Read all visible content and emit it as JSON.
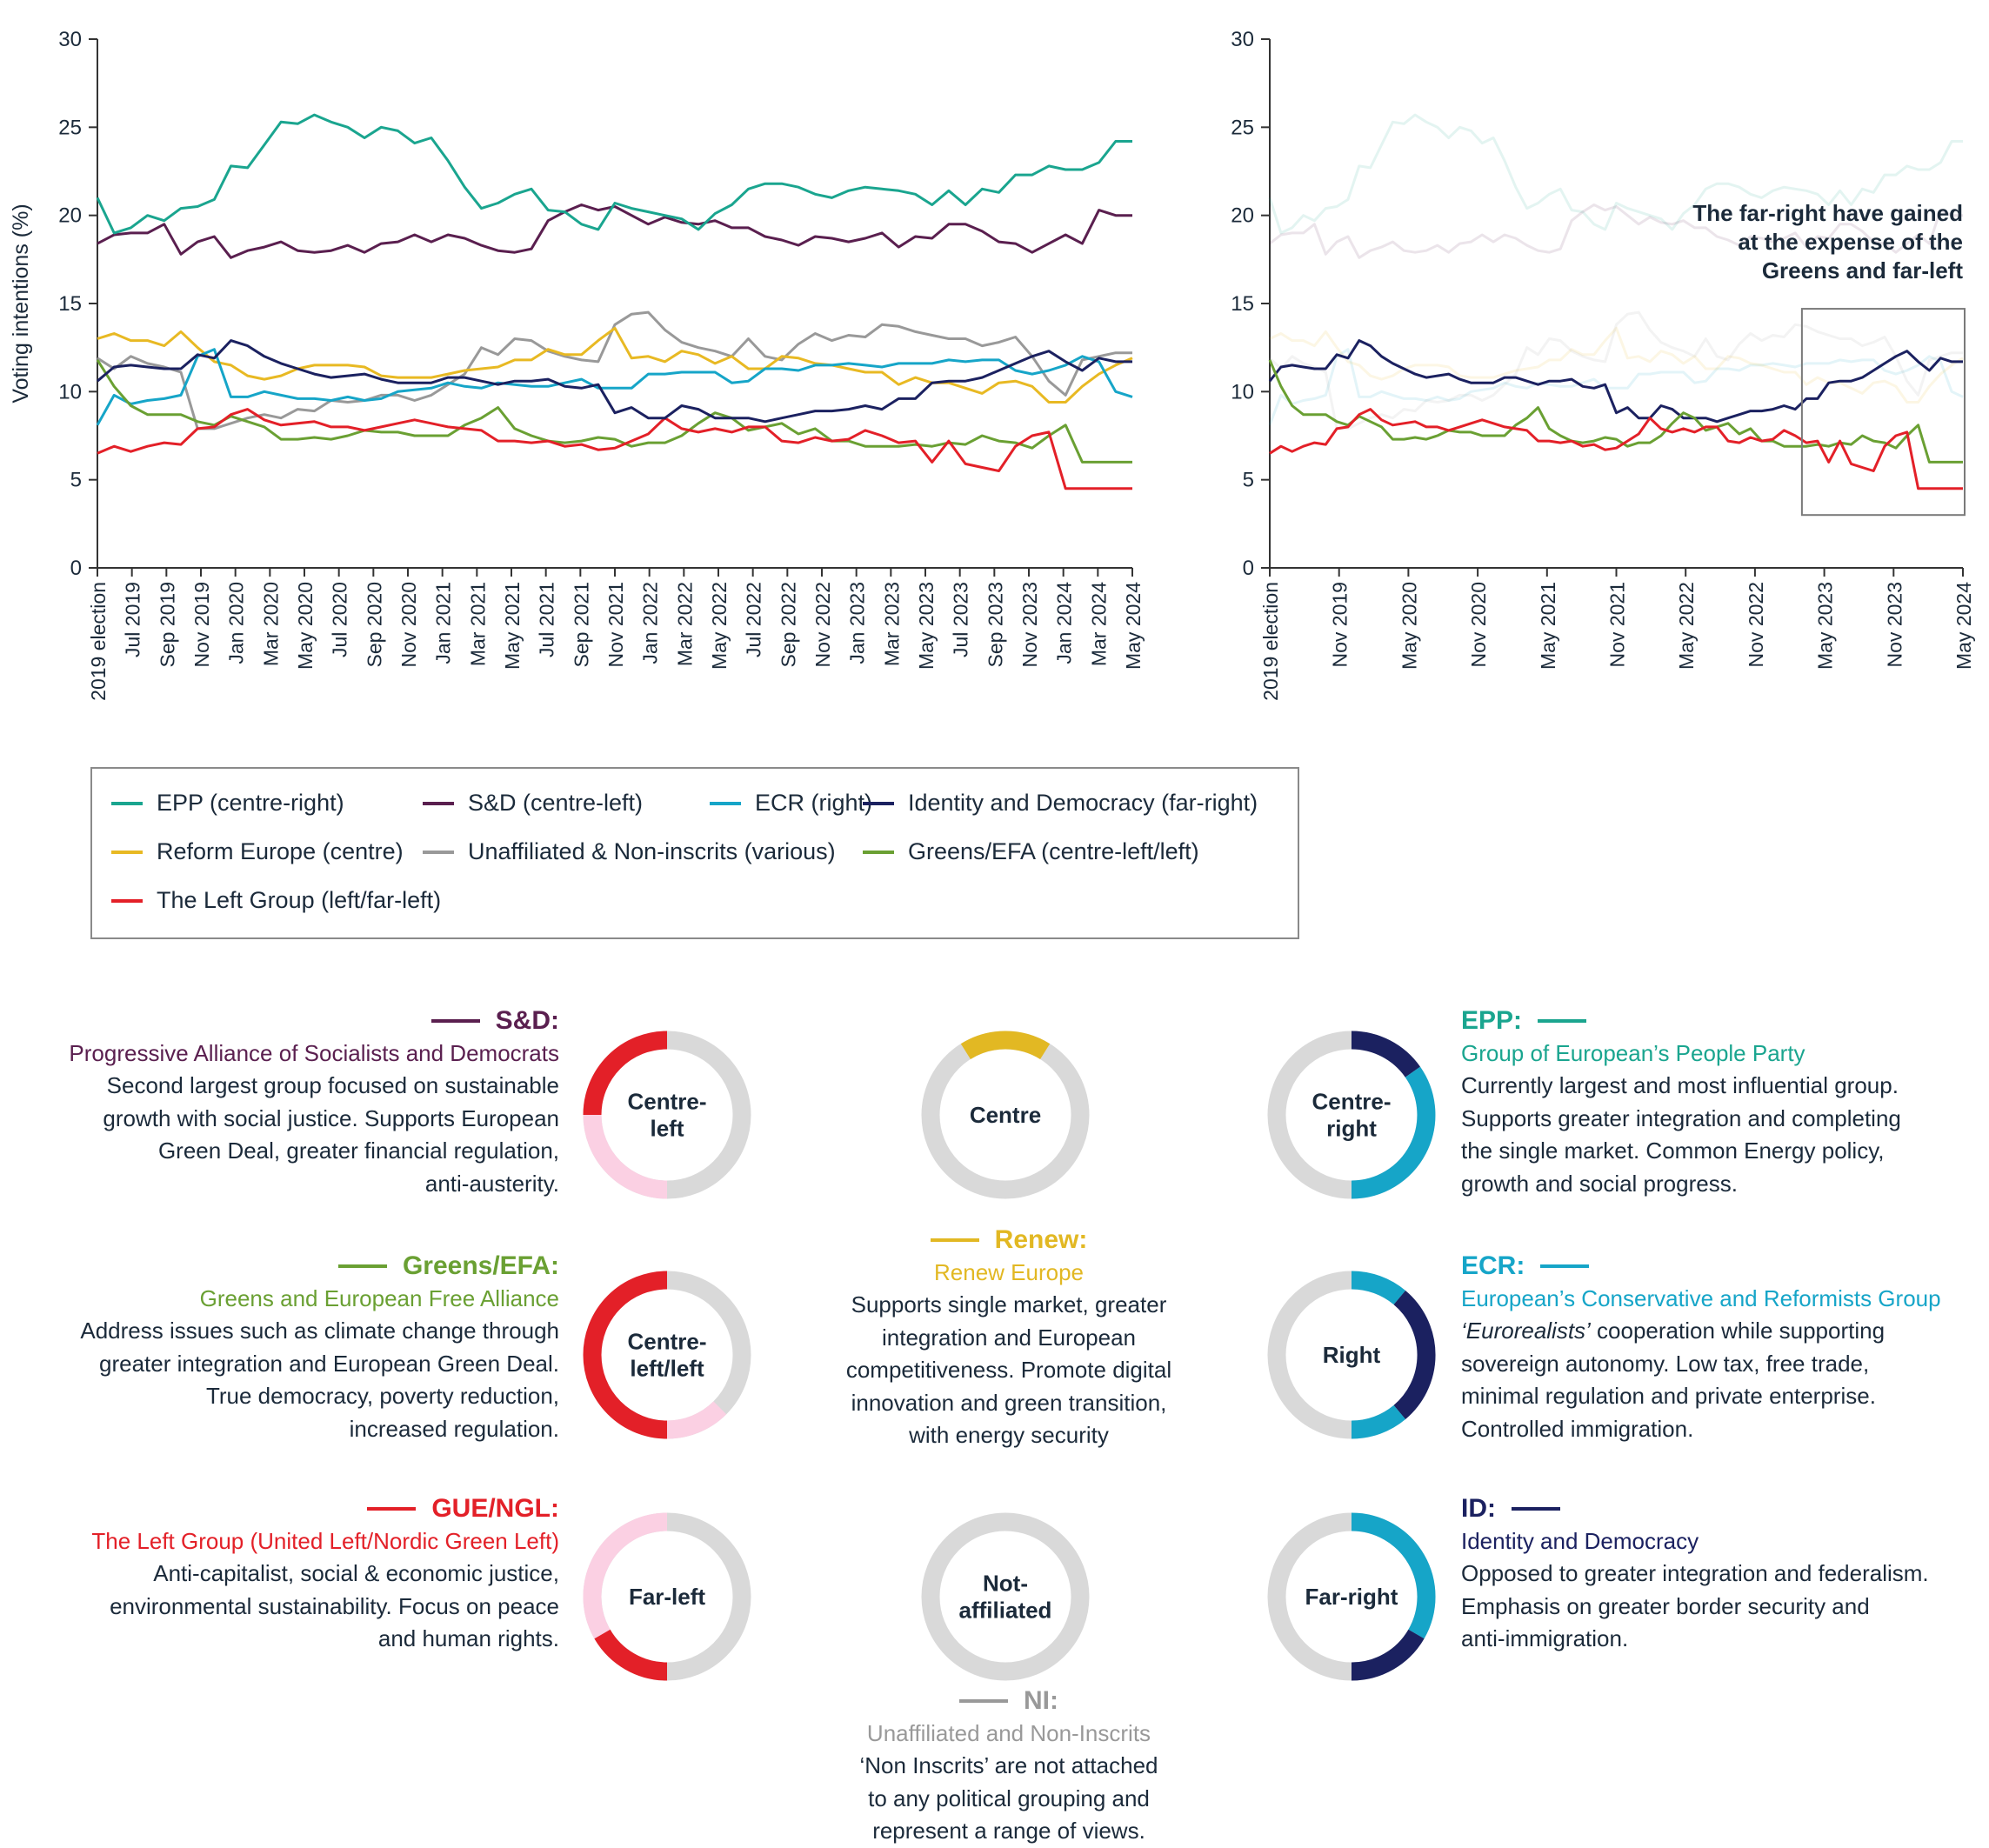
{
  "chart_data": [
    {
      "type": "line",
      "ylabel": "Voting intentions (%)",
      "ylim": [
        0,
        30
      ],
      "yticks": [
        0,
        5,
        10,
        15,
        20,
        25,
        30
      ],
      "x_ticks": [
        "2019 election",
        "Jul 2019",
        "Sep 2019",
        "Nov 2019",
        "Jan 2020",
        "Mar 2020",
        "May 2020",
        "Jul 2020",
        "Sep 2020",
        "Nov 2020",
        "Jan 2021",
        "Mar 2021",
        "May 2021",
        "Jul 2021",
        "Sep 2021",
        "Nov 2021",
        "Jan 2022",
        "Mar 2022",
        "May 2022",
        "Jul 2022",
        "Sep 2022",
        "Nov 2022",
        "Jan 2023",
        "Mar 2023",
        "May 2023",
        "Jul 2023",
        "Sep 2023",
        "Nov 2023",
        "Jan 2024",
        "Mar 2024",
        "May 2024"
      ],
      "series": [
        {
          "name": "EPP (centre-right)",
          "color": "#1aa58f",
          "values": [
            21.0,
            19.0,
            19.3,
            20.0,
            19.7,
            20.4,
            20.5,
            20.9,
            22.8,
            22.7,
            24.0,
            25.3,
            25.2,
            25.7,
            25.3,
            25.0,
            24.4,
            25.0,
            24.8,
            24.1,
            24.4,
            23.1,
            21.6,
            20.4,
            20.7,
            21.2,
            21.5,
            20.3,
            20.2,
            19.5,
            19.2,
            20.7,
            20.4,
            20.2,
            20.0,
            19.8,
            19.2,
            20.1,
            20.6,
            21.5,
            21.8,
            21.8,
            21.6,
            21.2,
            21.0,
            21.4,
            21.6,
            21.5,
            21.4,
            21.2,
            20.6,
            21.4,
            20.6,
            21.5,
            21.3,
            22.3,
            22.3,
            22.8,
            22.6,
            22.6,
            23.0,
            24.2,
            24.2
          ]
        },
        {
          "name": "S&D (centre-left)",
          "color": "#5a1f4f",
          "values": [
            18.4,
            18.9,
            19.0,
            19.0,
            19.5,
            17.8,
            18.5,
            18.8,
            17.6,
            18.0,
            18.2,
            18.5,
            18.0,
            17.9,
            18.0,
            18.3,
            17.9,
            18.4,
            18.5,
            18.9,
            18.5,
            18.9,
            18.7,
            18.3,
            18.0,
            17.9,
            18.1,
            19.7,
            20.2,
            20.6,
            20.3,
            20.5,
            20.0,
            19.5,
            19.9,
            19.6,
            19.5,
            19.7,
            19.3,
            19.3,
            18.8,
            18.6,
            18.3,
            18.8,
            18.7,
            18.5,
            18.7,
            19.0,
            18.2,
            18.8,
            18.7,
            19.5,
            19.5,
            19.1,
            18.5,
            18.4,
            17.9,
            18.4,
            18.9,
            18.4,
            20.3,
            20.0,
            20.0
          ]
        },
        {
          "name": "ECR (right)",
          "color": "#16a5c8",
          "values": [
            8.1,
            9.8,
            9.3,
            9.5,
            9.6,
            9.8,
            12.0,
            12.4,
            9.7,
            9.7,
            10.0,
            9.8,
            9.6,
            9.6,
            9.5,
            9.7,
            9.5,
            9.6,
            10.0,
            10.1,
            10.2,
            10.5,
            10.3,
            10.2,
            10.5,
            10.4,
            10.3,
            10.3,
            10.5,
            10.7,
            10.2,
            10.2,
            10.2,
            11.0,
            11.0,
            11.1,
            11.1,
            11.1,
            10.5,
            10.6,
            11.3,
            11.3,
            11.2,
            11.5,
            11.5,
            11.6,
            11.5,
            11.4,
            11.6,
            11.6,
            11.6,
            11.8,
            11.7,
            11.8,
            11.8,
            11.2,
            11.0,
            11.2,
            11.5,
            12.0,
            11.7,
            10.0,
            9.7
          ]
        },
        {
          "name": "Identity and Democracy (far-right)",
          "color": "#1b2160",
          "values": [
            10.6,
            11.4,
            11.5,
            11.4,
            11.3,
            11.3,
            12.1,
            11.9,
            12.9,
            12.6,
            12.0,
            11.6,
            11.3,
            11.0,
            10.8,
            10.9,
            11.0,
            10.7,
            10.5,
            10.5,
            10.5,
            10.8,
            10.8,
            10.6,
            10.4,
            10.6,
            10.6,
            10.7,
            10.3,
            10.2,
            10.4,
            8.8,
            9.1,
            8.5,
            8.5,
            9.2,
            9.0,
            8.5,
            8.5,
            8.5,
            8.3,
            8.5,
            8.7,
            8.9,
            8.9,
            9.0,
            9.2,
            9.0,
            9.6,
            9.6,
            10.5,
            10.6,
            10.6,
            10.8,
            11.2,
            11.6,
            12.0,
            12.3,
            11.7,
            11.2,
            11.9,
            11.7,
            11.7
          ]
        },
        {
          "name": "Reform Europe (centre)",
          "color": "#e8b923",
          "values": [
            13.0,
            13.3,
            12.9,
            12.9,
            12.6,
            13.4,
            12.5,
            11.7,
            11.5,
            10.9,
            10.7,
            10.9,
            11.3,
            11.5,
            11.5,
            11.5,
            11.4,
            10.9,
            10.8,
            10.8,
            10.8,
            11.0,
            11.2,
            11.3,
            11.4,
            11.8,
            11.8,
            12.4,
            12.1,
            12.1,
            12.9,
            13.6,
            11.9,
            12.0,
            11.7,
            12.3,
            12.1,
            11.6,
            12.0,
            11.3,
            11.3,
            12.0,
            11.9,
            11.6,
            11.5,
            11.3,
            11.1,
            11.1,
            10.4,
            10.8,
            10.5,
            10.5,
            10.2,
            9.9,
            10.5,
            10.6,
            10.3,
            9.4,
            9.4,
            10.3,
            11.0,
            11.5,
            11.9
          ]
        },
        {
          "name": "Unaffiliated & Non-inscrits (various)",
          "color": "#999999",
          "values": [
            11.9,
            11.3,
            12.0,
            11.6,
            11.4,
            11.1,
            7.9,
            7.9,
            8.2,
            8.5,
            8.7,
            8.5,
            9.0,
            8.9,
            9.5,
            9.4,
            9.5,
            9.8,
            9.8,
            9.5,
            9.8,
            10.4,
            11.0,
            12.5,
            12.1,
            13.0,
            12.9,
            12.3,
            12.0,
            11.8,
            11.7,
            13.8,
            14.4,
            14.5,
            13.5,
            12.8,
            12.5,
            12.3,
            12.0,
            13.0,
            12.0,
            11.8,
            12.7,
            13.3,
            12.9,
            13.2,
            13.1,
            13.8,
            13.7,
            13.4,
            13.2,
            13.0,
            13.0,
            12.6,
            12.8,
            13.1,
            12.0,
            10.6,
            9.8,
            11.8,
            12.0,
            12.2,
            12.2
          ]
        },
        {
          "name": "Greens/EFA (centre-left/left)",
          "color": "#6aa033",
          "values": [
            11.8,
            10.3,
            9.2,
            8.7,
            8.7,
            8.7,
            8.3,
            8.1,
            8.6,
            8.3,
            8.0,
            7.3,
            7.3,
            7.4,
            7.3,
            7.5,
            7.8,
            7.7,
            7.7,
            7.5,
            7.5,
            7.5,
            8.1,
            8.5,
            9.1,
            7.9,
            7.5,
            7.2,
            7.1,
            7.2,
            7.4,
            7.3,
            6.9,
            7.1,
            7.1,
            7.5,
            8.2,
            8.8,
            8.5,
            7.8,
            8.0,
            8.2,
            7.6,
            7.9,
            7.2,
            7.2,
            6.9,
            6.9,
            6.9,
            7.0,
            6.9,
            7.1,
            7.0,
            7.5,
            7.2,
            7.1,
            6.8,
            7.5,
            8.1,
            6.0,
            6.0,
            6.0,
            6.0
          ]
        },
        {
          "name": "The Left Group (left/far-left)",
          "color": "#e32028",
          "values": [
            6.5,
            6.9,
            6.6,
            6.9,
            7.1,
            7.0,
            7.9,
            8.0,
            8.7,
            9.0,
            8.4,
            8.1,
            8.2,
            8.3,
            8.0,
            8.0,
            7.8,
            8.0,
            8.2,
            8.4,
            8.2,
            8.0,
            7.9,
            7.8,
            7.2,
            7.2,
            7.1,
            7.2,
            6.9,
            7.0,
            6.7,
            6.8,
            7.2,
            7.6,
            8.5,
            7.9,
            7.7,
            7.9,
            7.7,
            8.0,
            8.0,
            7.2,
            7.1,
            7.4,
            7.2,
            7.3,
            7.8,
            7.5,
            7.1,
            7.2,
            6.0,
            7.2,
            5.9,
            5.7,
            5.5,
            6.9,
            7.5,
            7.7,
            4.5,
            4.5,
            4.5,
            4.5,
            4.5
          ]
        }
      ]
    },
    {
      "type": "line",
      "ylim": [
        0,
        30
      ],
      "yticks": [
        0,
        5,
        10,
        15,
        20,
        25,
        30
      ],
      "x_ticks": [
        "2019 election",
        "Nov 2019",
        "May 2020",
        "Nov 2020",
        "May 2021",
        "Nov 2021",
        "May 2022",
        "Nov 2022",
        "May 2023",
        "Nov 2023",
        "May 2024"
      ],
      "highlight_series": [
        "Identity and Democracy (far-right)",
        "Greens/EFA (centre-left/left)",
        "The Left Group (left/far-left)"
      ],
      "annotation": [
        "The far-right have gained",
        "at the expense of the",
        "Greens and far-left"
      ],
      "highlight_box_x_range": [
        "Mar 2023",
        "May 2024"
      ],
      "highlight_box_y_range": [
        3,
        14.7
      ]
    }
  ],
  "legend": [
    {
      "label": "EPP (centre-right)",
      "color": "#1aa58f"
    },
    {
      "label": "S&D (centre-left)",
      "color": "#5a1f4f"
    },
    {
      "label": "ECR (right)",
      "color": "#16a5c8"
    },
    {
      "label": "Identity and Democracy (far-right)",
      "color": "#1b2160"
    },
    {
      "label": "Reform Europe (centre)",
      "color": "#e8b923"
    },
    {
      "label": "Unaffiliated & Non-inscrits (various)",
      "color": "#999999"
    },
    {
      "label": "Greens/EFA (centre-left/left)",
      "color": "#6aa033"
    },
    {
      "label": "The Left Group (left/far-left)",
      "color": "#e32028"
    }
  ],
  "groups": {
    "sd": {
      "abbr": "S&D:",
      "name": "Progressive Alliance of Socialists and Democrats",
      "desc": [
        "Second largest group focused on sustainable",
        "growth with social justice. Supports European",
        "Green Deal, greater financial regulation,",
        "anti-austerity."
      ],
      "color": "#5a1f4f"
    },
    "greens": {
      "abbr": "Greens/EFA:",
      "name": "Greens and European Free Alliance",
      "desc": [
        "Address issues such as climate change through",
        "greater integration and European Green Deal.",
        "True democracy, poverty reduction,",
        "increased regulation."
      ],
      "color": "#6aa033"
    },
    "left": {
      "abbr": "GUE/NGL:",
      "name": "The Left Group (United Left/Nordic Green Left)",
      "desc": [
        "Anti-capitalist, social & economic justice,",
        "environmental sustainability. Focus on peace",
        "and human rights."
      ],
      "color": "#e32028"
    },
    "renew": {
      "abbr": "Renew:",
      "name": "Renew Europe",
      "desc": [
        "Supports single market, greater",
        "integration and European",
        "competitiveness. Promote digital",
        "innovation and green transition,",
        "with energy security"
      ],
      "color": "#e2b823"
    },
    "ni": {
      "abbr": "NI:",
      "name": "Unaffiliated and Non-Inscrits",
      "desc": [
        "‘Non Inscrits’ are not attached",
        "to any political grouping and",
        "represent a range of views."
      ],
      "color": "#999999"
    },
    "epp": {
      "abbr": "EPP:",
      "name": "Group of European’s People Party",
      "desc": [
        "Currently largest and most influential group.",
        "Supports greater integration and completing",
        "the single market. Common Energy policy,",
        "growth and social progress."
      ],
      "color": "#1aa58f"
    },
    "ecr": {
      "abbr": "ECR:",
      "name": "European’s Conservative and Reformists Group",
      "desc_italic": "‘Eurorealists’",
      "desc": [
        " cooperation while supporting",
        "sovereign autonomy. Low tax, free trade,",
        "minimal regulation and private enterprise.",
        "Controlled immigration."
      ],
      "color": "#16a5c8"
    },
    "id": {
      "abbr": "ID:",
      "name": "Identity and Democracy",
      "desc": [
        "Opposed to greater integration and federalism.",
        "Emphasis on greater border security and",
        "anti-immigration."
      ],
      "color": "#1b2160"
    }
  },
  "rings": [
    {
      "key": "centre-left",
      "label": [
        "Centre-",
        "left"
      ]
    },
    {
      "key": "centre-left-left",
      "label": [
        "Centre-",
        "left/left"
      ]
    },
    {
      "key": "far-left",
      "label": [
        "Far-left"
      ]
    },
    {
      "key": "centre",
      "label": [
        "Centre"
      ]
    },
    {
      "key": "not-affiliated",
      "label": [
        "Not-",
        "affiliated"
      ]
    },
    {
      "key": "centre-right",
      "label": [
        "Centre-",
        "right"
      ]
    },
    {
      "key": "right",
      "label": [
        "Right"
      ]
    },
    {
      "key": "far-right",
      "label": [
        "Far-right"
      ]
    }
  ]
}
